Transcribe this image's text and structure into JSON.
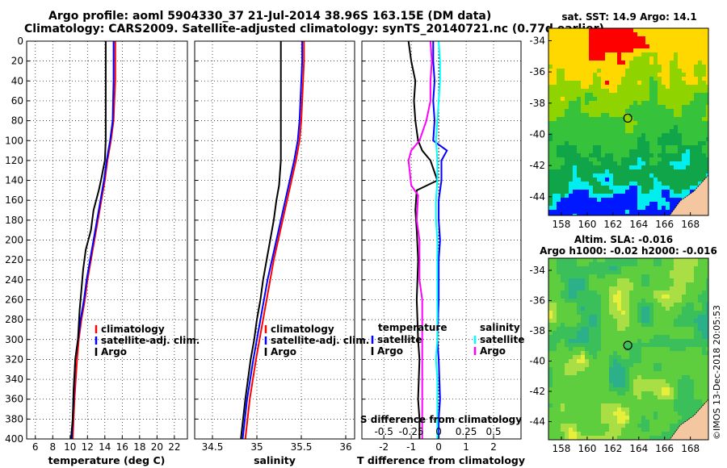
{
  "header": {
    "line1": "Argo profile: aoml 5904330_37 21-Jul-2014 38.96S 163.15E (DM data)",
    "line2": "Climatology: CARS2009. Satellite-adjusted climatology: synTS_20140721.nc (0.77d earlier)"
  },
  "side_label": "©IMOS 13-Dec-2018 20:05:53",
  "colors": {
    "climatology": "#ff0000",
    "satellite": "#0000ff",
    "argo": "#000000",
    "sat_salinity": "#00ffff",
    "argo_salinity": "#ff00ff"
  },
  "chart_data": [
    {
      "type": "line",
      "name": "temperature",
      "xlabel": "temperature (deg C)",
      "ylabel": "",
      "xlim": [
        5,
        23.5
      ],
      "ylim": [
        400,
        0
      ],
      "xticks": [
        "6",
        "8",
        "10",
        "12",
        "14",
        "16",
        "18",
        "20",
        "22"
      ],
      "yticks": [
        "0",
        "20",
        "40",
        "60",
        "80",
        "100",
        "120",
        "140",
        "160",
        "180",
        "200",
        "220",
        "240",
        "260",
        "280",
        "300",
        "320",
        "340",
        "360",
        "380",
        "400"
      ],
      "legend": [
        "climatology",
        "satellite-adj. clim.",
        "Argo"
      ],
      "series": [
        {
          "name": "climatology",
          "color": "#ff0000",
          "x": [
            15.2,
            15.2,
            15.2,
            15.1,
            15.0,
            14.7,
            14.3,
            14.0,
            13.6,
            13.2,
            12.8,
            12.4,
            12.0,
            11.7,
            11.3,
            11.0,
            10.8,
            10.5,
            10.3
          ],
          "y": [
            0,
            20,
            40,
            60,
            80,
            100,
            120,
            140,
            160,
            180,
            200,
            220,
            240,
            260,
            280,
            300,
            320,
            360,
            400
          ]
        },
        {
          "name": "satellite-adj. clim.",
          "color": "#0000ff",
          "x": [
            15.0,
            15.0,
            15.0,
            14.95,
            14.9,
            14.6,
            14.2,
            13.9,
            13.5,
            13.1,
            12.7,
            12.3,
            11.9,
            11.6,
            11.2,
            10.9,
            10.6,
            10.4,
            10.2
          ],
          "y": [
            0,
            20,
            40,
            60,
            80,
            100,
            120,
            140,
            160,
            180,
            200,
            220,
            240,
            260,
            280,
            300,
            320,
            360,
            400
          ]
        },
        {
          "name": "Argo",
          "color": "#000000",
          "x": [
            14.1,
            14.1,
            14.1,
            14.1,
            14.1,
            14.1,
            14.0,
            13.6,
            13.3,
            12.7,
            12.4,
            11.8,
            11.5,
            11.3,
            11.1,
            10.9,
            10.6,
            10.4,
            10.3,
            10.1
          ],
          "y": [
            0,
            20,
            40,
            60,
            80,
            100,
            120,
            138,
            150,
            170,
            190,
            210,
            230,
            250,
            270,
            300,
            320,
            350,
            380,
            400
          ]
        }
      ]
    },
    {
      "type": "line",
      "name": "salinity",
      "xlabel": "salinity",
      "xlim": [
        34.3,
        36.1
      ],
      "ylim": [
        400,
        0
      ],
      "xticks": [
        "34.5",
        "35",
        "35.5",
        "36"
      ],
      "legend": [
        "climatology",
        "satellite-adj. clim.",
        "Argo"
      ],
      "series": [
        {
          "name": "climatology",
          "color": "#ff0000",
          "x": [
            35.53,
            35.53,
            35.52,
            35.51,
            35.5,
            35.48,
            35.44,
            35.39,
            35.34,
            35.29,
            35.24,
            35.19,
            35.15,
            35.11,
            35.07,
            35.03,
            34.99,
            34.92,
            34.87
          ],
          "y": [
            0,
            20,
            40,
            60,
            80,
            100,
            120,
            140,
            160,
            180,
            200,
            220,
            240,
            260,
            280,
            300,
            320,
            360,
            400
          ]
        },
        {
          "name": "satellite-adj. clim.",
          "color": "#0000ff",
          "x": [
            35.51,
            35.51,
            35.5,
            35.49,
            35.48,
            35.46,
            35.42,
            35.37,
            35.32,
            35.27,
            35.22,
            35.17,
            35.12,
            35.08,
            35.04,
            35.0,
            34.96,
            34.89,
            34.84
          ],
          "y": [
            0,
            20,
            40,
            60,
            80,
            100,
            120,
            140,
            160,
            180,
            200,
            220,
            240,
            260,
            280,
            300,
            320,
            360,
            400
          ]
        },
        {
          "name": "Argo",
          "color": "#000000",
          "x": [
            35.27,
            35.27,
            35.27,
            35.27,
            35.27,
            35.27,
            35.27,
            35.25,
            35.22,
            35.19,
            35.15,
            35.11,
            35.07,
            35.04,
            35.0,
            34.97,
            34.93,
            34.87,
            34.82
          ],
          "y": [
            0,
            20,
            40,
            60,
            80,
            100,
            120,
            145,
            160,
            180,
            200,
            220,
            240,
            260,
            280,
            300,
            320,
            360,
            400
          ]
        }
      ]
    },
    {
      "type": "line",
      "name": "difference",
      "xlabel": "T difference from climatology",
      "xlabel2": "S difference from climatology",
      "xlim": [
        -2.8,
        3.0
      ],
      "ylim": [
        400,
        0
      ],
      "xticks_T": [
        "-2",
        "-1",
        "0",
        "1",
        "2"
      ],
      "xticks_T_values": [
        -2,
        -1,
        0,
        1,
        2
      ],
      "xticks_S": [
        "-0.5",
        "-0.25",
        "0",
        "0.25",
        "0.5"
      ],
      "legend_T_title": "temperature",
      "legend_S_title": "salinity",
      "legend_T": [
        "satellite",
        "Argo"
      ],
      "legend_S": [
        "satellite",
        "Argo"
      ],
      "series": [
        {
          "name": "T satellite",
          "color": "#0000ff",
          "x": [
            -0.2,
            -0.2,
            -0.15,
            -0.2,
            -0.15,
            -0.2,
            0.3,
            0.1,
            0.1,
            0.0,
            0.0,
            0.05,
            0.0,
            0.0,
            -0.05,
            0.0,
            0.05,
            0.0,
            0.0
          ],
          "y": [
            0,
            20,
            40,
            60,
            80,
            100,
            110,
            120,
            140,
            160,
            180,
            200,
            220,
            260,
            300,
            320,
            360,
            380,
            400
          ]
        },
        {
          "name": "T Argo",
          "color": "#000000",
          "x": [
            -1.1,
            -1.0,
            -0.85,
            -0.9,
            -0.85,
            -0.75,
            -0.6,
            -0.3,
            -0.05,
            -0.8,
            -0.85,
            -0.8,
            -0.75,
            -0.8,
            -0.75,
            -0.7,
            -0.75,
            -0.7,
            -0.7
          ],
          "y": [
            0,
            20,
            40,
            60,
            80,
            100,
            110,
            120,
            140,
            150,
            170,
            190,
            220,
            260,
            300,
            320,
            360,
            380,
            400
          ]
        },
        {
          "name": "S satellite",
          "color": "#00ffff",
          "x": [
            0.0,
            0.05,
            0.05,
            0.0,
            -0.05,
            -0.1,
            -0.05,
            -0.05,
            -0.1,
            -0.1,
            -0.05,
            -0.05,
            -0.05,
            -0.05,
            -0.1,
            -0.05,
            -0.05,
            -0.05,
            -0.05
          ],
          "y": [
            0,
            20,
            40,
            60,
            80,
            100,
            120,
            140,
            160,
            180,
            200,
            220,
            260,
            300,
            320,
            340,
            360,
            380,
            400
          ]
        },
        {
          "name": "S Argo",
          "color": "#ff00ff",
          "x": [
            -0.3,
            -0.25,
            -0.3,
            -0.3,
            -0.45,
            -0.7,
            -1.0,
            -1.1,
            -1.0,
            -0.75,
            -0.8,
            -0.7,
            -0.7,
            -0.6,
            -0.6,
            -0.6,
            -0.6,
            -0.6,
            -0.6,
            -0.6
          ],
          "y": [
            0,
            20,
            40,
            60,
            80,
            100,
            110,
            120,
            145,
            155,
            180,
            200,
            240,
            260,
            280,
            300,
            320,
            360,
            380,
            400
          ]
        }
      ]
    },
    {
      "type": "heatmap",
      "name": "sst-map",
      "title": "sat. SST: 14.9  Argo: 14.1",
      "xticks": [
        "158",
        "160",
        "162",
        "164",
        "166",
        "168"
      ],
      "yticks": [
        "-34",
        "-36",
        "-38",
        "-40",
        "-42",
        "-44"
      ],
      "profile_marker": {
        "lon": 163.15,
        "lat": -38.96
      }
    },
    {
      "type": "heatmap",
      "name": "sla-map",
      "title": "Altim. SLA: -0.016",
      "subtitle": "Argo h1000: -0.02 h2000: -0.016",
      "xticks": [
        "158",
        "160",
        "162",
        "164",
        "166",
        "168"
      ],
      "yticks": [
        "-34",
        "-36",
        "-38",
        "-40",
        "-42",
        "-44"
      ],
      "profile_marker": {
        "lon": 163.15,
        "lat": -38.96
      }
    }
  ]
}
